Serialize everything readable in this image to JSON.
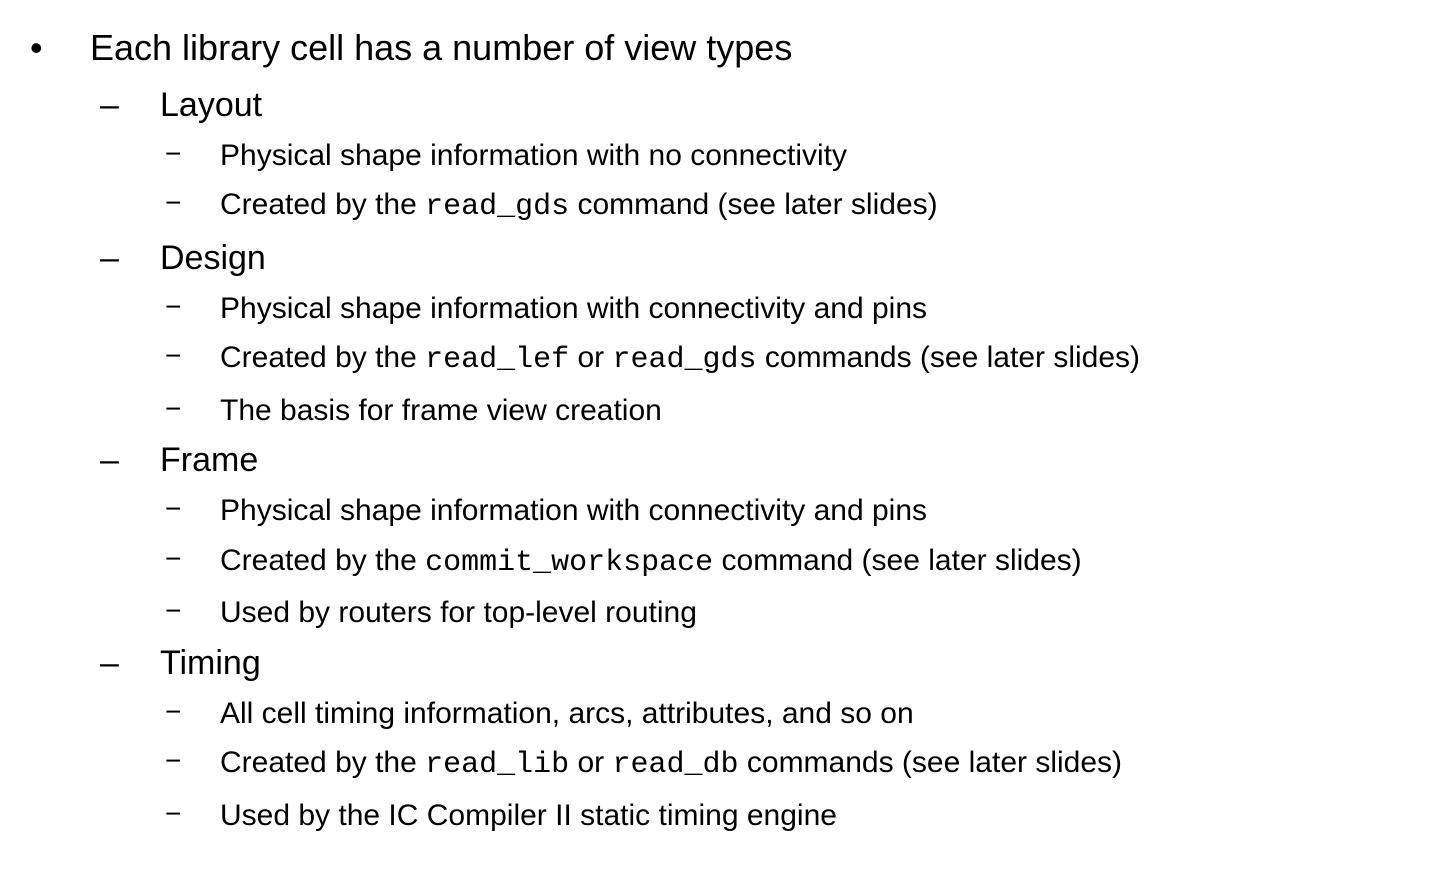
{
  "heading": "Each library cell has a number of view types",
  "sections": [
    {
      "title": "Layout",
      "items": [
        {
          "segments": [
            {
              "text": "Physical shape information with no connectivity"
            }
          ]
        },
        {
          "segments": [
            {
              "text": "Created by the "
            },
            {
              "text": "read_gds",
              "code": true
            },
            {
              "text": " command (see later slides)"
            }
          ]
        }
      ]
    },
    {
      "title": "Design",
      "items": [
        {
          "segments": [
            {
              "text": "Physical shape information with connectivity and pins"
            }
          ]
        },
        {
          "segments": [
            {
              "text": "Created by the "
            },
            {
              "text": "read_lef",
              "code": true
            },
            {
              "text": " or "
            },
            {
              "text": "read_gds",
              "code": true
            },
            {
              "text": " commands (see later slides)"
            }
          ]
        },
        {
          "segments": [
            {
              "text": "The basis for frame view creation"
            }
          ]
        }
      ]
    },
    {
      "title": "Frame",
      "items": [
        {
          "segments": [
            {
              "text": "Physical shape information with connectivity and pins"
            }
          ]
        },
        {
          "segments": [
            {
              "text": "Created by the "
            },
            {
              "text": "commit_workspace",
              "code": true
            },
            {
              "text": " command (see later slides)"
            }
          ]
        },
        {
          "segments": [
            {
              "text": "Used by routers for top-level routing"
            }
          ]
        }
      ]
    },
    {
      "title": "Timing",
      "items": [
        {
          "segments": [
            {
              "text": "All cell timing information, arcs, attributes, and so on"
            }
          ]
        },
        {
          "segments": [
            {
              "text": "Created by the "
            },
            {
              "text": "read_lib",
              "code": true
            },
            {
              "text": " or "
            },
            {
              "text": "read_db",
              "code": true
            },
            {
              "text": " commands (see later slides)"
            }
          ]
        },
        {
          "segments": [
            {
              "text": "Used by the IC Compiler II static timing engine"
            }
          ]
        }
      ]
    }
  ],
  "bullets": {
    "level1": "•",
    "level2": "–",
    "level3": "−"
  }
}
